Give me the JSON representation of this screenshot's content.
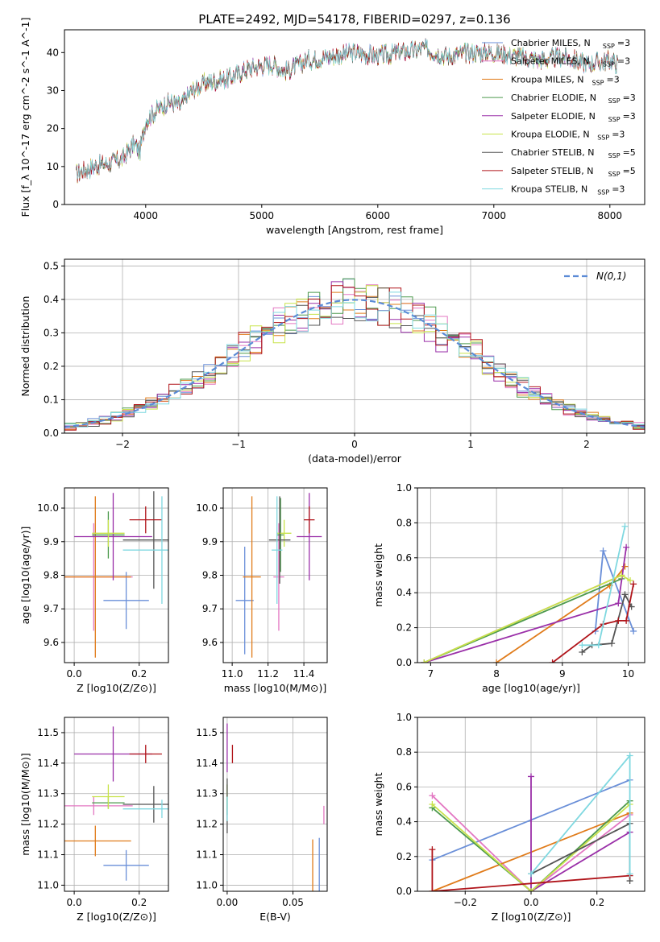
{
  "figure": {
    "title": "PLATE=2492, MJD=54178, FIBERID=0297, z=0.136"
  },
  "models": [
    {
      "name": "Chabrier MILES",
      "nssp": "3",
      "color": "#6a8fd8"
    },
    {
      "name": "Salpeter MILES",
      "nssp": "3",
      "color": "#e377c2"
    },
    {
      "name": "Kroupa MILES",
      "nssp": "3",
      "color": "#e07b1a"
    },
    {
      "name": "Chabrier ELODIE",
      "nssp": "3",
      "color": "#4d9a4d"
    },
    {
      "name": "Salpeter ELODIE",
      "nssp": "3",
      "color": "#9a2fa8"
    },
    {
      "name": "Kroupa ELODIE",
      "nssp": "3",
      "color": "#c8e34a"
    },
    {
      "name": "Chabrier STELIB",
      "nssp": "5",
      "color": "#555555"
    },
    {
      "name": "Salpeter STELIB",
      "nssp": "5",
      "color": "#b0141a"
    },
    {
      "name": "Kroupa STELIB",
      "nssp": "3",
      "color": "#7fd8e0"
    }
  ],
  "chart_data": [
    {
      "id": "spectrum",
      "type": "line",
      "xlabel": "wavelength [Angstrom, rest frame]",
      "ylabel": "Flux [f_λ 10^-17 erg cm^-2 s^-1 A^-1]",
      "xlim": [
        3300,
        8300
      ],
      "ylim": [
        0,
        46
      ],
      "xticks": [
        4000,
        5000,
        6000,
        7000,
        8000
      ],
      "yticks": [
        0,
        10,
        20,
        30,
        40
      ],
      "x_range_data": [
        3400,
        8070
      ],
      "continuum": [
        [
          3400,
          8
        ],
        [
          3550,
          10
        ],
        [
          3700,
          11
        ],
        [
          3800,
          12
        ],
        [
          3900,
          16
        ],
        [
          3950,
          14
        ],
        [
          4000,
          22
        ],
        [
          4100,
          25
        ],
        [
          4200,
          27
        ],
        [
          4300,
          26
        ],
        [
          4400,
          30
        ],
        [
          4500,
          32
        ],
        [
          4700,
          33
        ],
        [
          4900,
          36
        ],
        [
          5100,
          37
        ],
        [
          5200,
          35
        ],
        [
          5400,
          38
        ],
        [
          5600,
          39
        ],
        [
          5800,
          40
        ],
        [
          6000,
          39
        ],
        [
          6200,
          40
        ],
        [
          6400,
          41
        ],
        [
          6600,
          39
        ],
        [
          6800,
          40
        ],
        [
          7000,
          40
        ],
        [
          7200,
          39
        ],
        [
          7400,
          38
        ],
        [
          7600,
          39
        ],
        [
          7800,
          37
        ],
        [
          8000,
          38
        ],
        [
          8070,
          37
        ]
      ],
      "grid": false
    },
    {
      "id": "residuals",
      "type": "line",
      "xlabel": "(data-model)/error",
      "ylabel": "Normed distribution",
      "xlim": [
        -2.5,
        2.5
      ],
      "ylim": [
        0,
        0.52
      ],
      "xticks": [
        -2,
        -1,
        0,
        1,
        2
      ],
      "yticks": [
        0.0,
        0.1,
        0.2,
        0.3,
        0.4,
        0.5
      ],
      "legend": {
        "label": "N(0,1)",
        "placement": "top-right"
      },
      "grid": true
    },
    {
      "id": "age-vs-Z",
      "type": "scatter",
      "xlabel": "Z [log10(Z/Z⊙)]",
      "ylabel": "age  [log10(age/yr)]",
      "xlim": [
        -0.03,
        0.29
      ],
      "ylim": [
        9.54,
        10.06
      ],
      "xticks": [
        0.0,
        0.2
      ],
      "yticks": [
        9.6,
        9.7,
        9.8,
        9.9,
        10.0
      ],
      "points": [
        {
          "model": 0,
          "x": 0.16,
          "xerr": 0.07,
          "y": 9.725,
          "yerr": 0.085
        },
        {
          "model": 1,
          "x": 0.06,
          "xerr": 0.12,
          "y": 9.795,
          "yerr": 0.16
        },
        {
          "model": 2,
          "x": 0.065,
          "xerr": 0.11,
          "y": 9.795,
          "yerr": 0.24
        },
        {
          "model": 3,
          "x": 0.105,
          "xerr": 0.05,
          "y": 9.92,
          "yerr": 0.07
        },
        {
          "model": 4,
          "x": 0.12,
          "xerr": 0.12,
          "y": 9.915,
          "yerr": 0.13
        },
        {
          "model": 5,
          "x": 0.105,
          "xerr": 0.05,
          "y": 9.925,
          "yerr": 0.04
        },
        {
          "model": 6,
          "x": 0.245,
          "xerr": 0.095,
          "y": 9.905,
          "yerr": 0.145
        },
        {
          "model": 7,
          "x": 0.22,
          "xerr": 0.05,
          "y": 9.965,
          "yerr": 0.04
        },
        {
          "model": 8,
          "x": 0.27,
          "xerr": 0.12,
          "y": 9.875,
          "yerr": 0.16
        }
      ],
      "grid": true
    },
    {
      "id": "age-vs-mass",
      "type": "scatter",
      "xlabel": "mass [log10(M/M⊙)]",
      "ylabel": "",
      "xlim": [
        10.95,
        11.53
      ],
      "ylim": [
        9.54,
        10.06
      ],
      "xticks": [
        11.0,
        11.2,
        11.4
      ],
      "yticks": [
        9.6,
        9.7,
        9.8,
        9.9,
        10.0
      ],
      "points": [
        {
          "model": 0,
          "x": 11.07,
          "xerr": 0.05,
          "y": 9.725,
          "yerr": 0.16
        },
        {
          "model": 1,
          "x": 11.26,
          "xerr": 0.03,
          "y": 9.795,
          "yerr": 0.16
        },
        {
          "model": 2,
          "x": 11.11,
          "xerr": 0.05,
          "y": 9.795,
          "yerr": 0.24
        },
        {
          "model": 3,
          "x": 11.27,
          "xerr": 0.02,
          "y": 9.92,
          "yerr": 0.11
        },
        {
          "model": 4,
          "x": 11.43,
          "xerr": 0.07,
          "y": 9.915,
          "yerr": 0.13
        },
        {
          "model": 5,
          "x": 11.29,
          "xerr": 0.04,
          "y": 9.925,
          "yerr": 0.04
        },
        {
          "model": 6,
          "x": 11.265,
          "xerr": 0.06,
          "y": 9.905,
          "yerr": 0.13
        },
        {
          "model": 7,
          "x": 11.43,
          "xerr": 0.03,
          "y": 9.965,
          "yerr": 0.04
        },
        {
          "model": 8,
          "x": 11.25,
          "xerr": 0.03,
          "y": 9.875,
          "yerr": 0.16
        }
      ],
      "grid": true
    },
    {
      "id": "weight-vs-age",
      "type": "line",
      "xlabel": "age  [log10(age/yr)]",
      "ylabel": "mass weight",
      "xlim": [
        6.8,
        10.25
      ],
      "ylim": [
        0,
        1
      ],
      "xticks": [
        7,
        8,
        9,
        10
      ],
      "yticks": [
        0.0,
        0.2,
        0.4,
        0.6,
        0.8,
        1.0
      ],
      "series": [
        {
          "model": 0,
          "x": [
            9.5,
            9.62,
            10.08
          ],
          "y": [
            0.18,
            0.64,
            0.18
          ]
        },
        {
          "model": 1,
          "x": [
            6.9,
            9.9
          ],
          "y": [
            0.0,
            0.5
          ]
        },
        {
          "model": 2,
          "x": [
            8.0,
            9.72,
            9.95
          ],
          "y": [
            0.0,
            0.44,
            0.55
          ]
        },
        {
          "model": 3,
          "x": [
            6.9,
            9.9
          ],
          "y": [
            0.0,
            0.48
          ]
        },
        {
          "model": 4,
          "x": [
            6.9,
            9.85,
            9.97
          ],
          "y": [
            0.0,
            0.34,
            0.66
          ]
        },
        {
          "model": 5,
          "x": [
            6.9,
            9.9,
            10.03
          ],
          "y": [
            0.0,
            0.5,
            0.47
          ]
        },
        {
          "model": 6,
          "x": [
            9.3,
            9.45,
            9.75,
            9.95,
            10.05
          ],
          "y": [
            0.06,
            0.1,
            0.11,
            0.39,
            0.32
          ]
        },
        {
          "model": 7,
          "x": [
            8.85,
            9.62,
            9.85,
            9.97,
            10.08
          ],
          "y": [
            0.0,
            0.22,
            0.24,
            0.24,
            0.45
          ]
        },
        {
          "model": 8,
          "x": [
            9.3,
            9.55,
            9.95
          ],
          "y": [
            0.1,
            0.1,
            0.78
          ]
        }
      ],
      "grid": true
    },
    {
      "id": "mass-vs-Z",
      "type": "scatter",
      "xlabel": "Z [log10(Z/Z⊙)]",
      "ylabel": "mass [log10(M/M⊙)]",
      "xlim": [
        -0.03,
        0.29
      ],
      "ylim": [
        10.98,
        11.55
      ],
      "xticks": [
        0.0,
        0.2
      ],
      "yticks": [
        11.0,
        11.1,
        11.2,
        11.3,
        11.4,
        11.5
      ],
      "points": [
        {
          "model": 0,
          "x": 0.16,
          "xerr": 0.07,
          "y": 11.065,
          "yerr": 0.05
        },
        {
          "model": 1,
          "x": 0.06,
          "xerr": 0.12,
          "y": 11.26,
          "yerr": 0.03
        },
        {
          "model": 2,
          "x": 0.065,
          "xerr": 0.11,
          "y": 11.145,
          "yerr": 0.05
        },
        {
          "model": 3,
          "x": 0.105,
          "xerr": 0.05,
          "y": 11.27,
          "yerr": 0.02
        },
        {
          "model": 4,
          "x": 0.12,
          "xerr": 0.12,
          "y": 11.43,
          "yerr": 0.09
        },
        {
          "model": 5,
          "x": 0.105,
          "xerr": 0.05,
          "y": 11.29,
          "yerr": 0.04
        },
        {
          "model": 6,
          "x": 0.245,
          "xerr": 0.095,
          "y": 11.265,
          "yerr": 0.06
        },
        {
          "model": 7,
          "x": 0.22,
          "xerr": 0.05,
          "y": 11.43,
          "yerr": 0.03
        },
        {
          "model": 8,
          "x": 0.27,
          "xerr": 0.12,
          "y": 11.25,
          "yerr": 0.03
        }
      ],
      "grid": true
    },
    {
      "id": "mass-vs-EBV",
      "type": "scatter",
      "xlabel": "E(B-V)",
      "ylabel": "",
      "xlim": [
        -0.003,
        0.076
      ],
      "ylim": [
        10.98,
        11.55
      ],
      "xticks": [
        0.0,
        0.05
      ],
      "yticks": [
        11.0,
        11.1,
        11.2,
        11.3,
        11.4,
        11.5
      ],
      "points": [
        {
          "model": 0,
          "x": 0.07,
          "xerr": 0,
          "y": 11.065,
          "yerr": 0.09
        },
        {
          "model": 1,
          "x": 0.0735,
          "xerr": 0,
          "y": 11.23,
          "yerr": 0.03
        },
        {
          "model": 2,
          "x": 0.065,
          "xerr": 0,
          "y": 11.06,
          "yerr": 0.09
        },
        {
          "model": 3,
          "x": 0.0,
          "xerr": 0,
          "y": 11.28,
          "yerr": 0.05
        },
        {
          "model": 4,
          "x": 0.0,
          "xerr": 0,
          "y": 11.45,
          "yerr": 0.08
        },
        {
          "model": 5,
          "x": 0.0,
          "xerr": 0,
          "y": 11.29,
          "yerr": 0.04
        },
        {
          "model": 6,
          "x": 0.0,
          "xerr": 0,
          "y": 11.26,
          "yerr": 0.09
        },
        {
          "model": 7,
          "x": 0.004,
          "xerr": 0,
          "y": 11.43,
          "yerr": 0.03
        },
        {
          "model": 8,
          "x": 0.0,
          "xerr": 0,
          "y": 11.25,
          "yerr": 0.04
        }
      ],
      "grid": true
    },
    {
      "id": "weight-vs-Z",
      "type": "line",
      "xlabel": "Z [log10(Z/Z⊙)]",
      "ylabel": "mass weight",
      "xlim": [
        -0.345,
        0.345
      ],
      "ylim": [
        0,
        1
      ],
      "xticks": [
        -0.2,
        0.0,
        0.2
      ],
      "yticks": [
        0.0,
        0.2,
        0.4,
        0.6,
        0.8,
        1.0
      ],
      "series": [
        {
          "model": 0,
          "x": [
            -0.3,
            0.3
          ],
          "y": [
            0.18,
            0.64
          ]
        },
        {
          "model": 1,
          "x": [
            -0.3,
            0.0,
            0.3
          ],
          "y": [
            0.55,
            0.0,
            0.44
          ]
        },
        {
          "model": 2,
          "x": [
            -0.3,
            0.3
          ],
          "y": [
            0.0,
            0.45
          ]
        },
        {
          "model": 3,
          "x": [
            -0.3,
            0.0,
            0.3
          ],
          "y": [
            0.48,
            0.0,
            0.52
          ]
        },
        {
          "model": 4,
          "x": [
            0.0,
            0.0,
            0.3
          ],
          "y": [
            0.66,
            0.0,
            0.34
          ]
        },
        {
          "model": 5,
          "x": [
            -0.3,
            0.0,
            0.3
          ],
          "y": [
            0.5,
            0.0,
            0.5
          ]
        },
        {
          "model": 6,
          "x": [
            0.0,
            0.3,
            0.3
          ],
          "y": [
            0.1,
            0.39,
            0.06
          ]
        },
        {
          "model": 7,
          "x": [
            -0.3,
            -0.3,
            0.3
          ],
          "y": [
            0.24,
            0.0,
            0.09
          ]
        },
        {
          "model": 8,
          "x": [
            0.0,
            0.3,
            0.3
          ],
          "y": [
            0.1,
            0.78,
            0.1
          ]
        }
      ],
      "grid": true
    }
  ]
}
